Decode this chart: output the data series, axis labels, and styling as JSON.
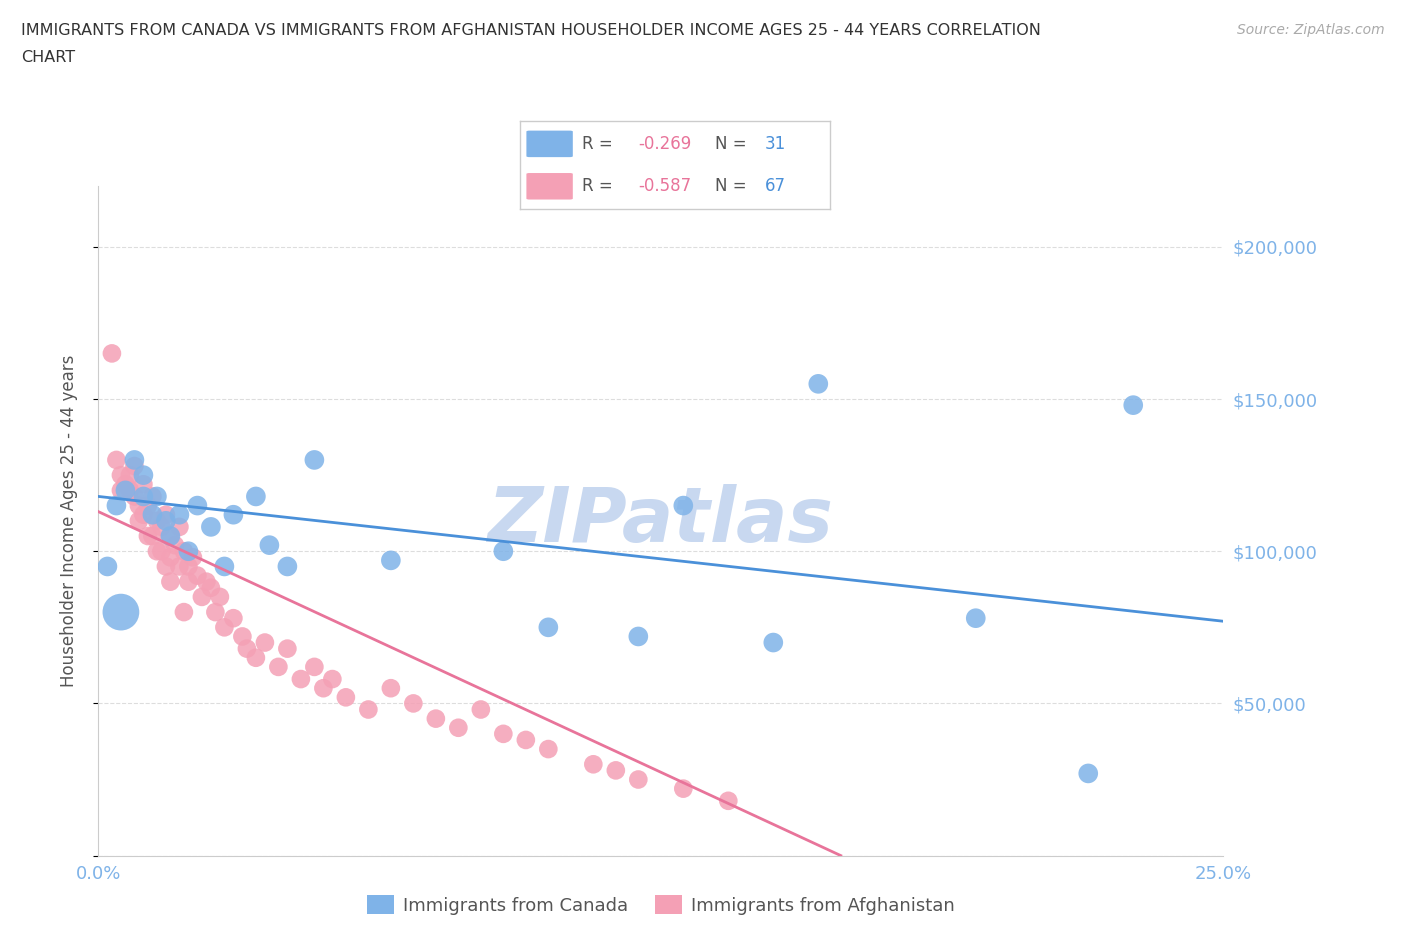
{
  "title_line1": "IMMIGRANTS FROM CANADA VS IMMIGRANTS FROM AFGHANISTAN HOUSEHOLDER INCOME AGES 25 - 44 YEARS CORRELATION",
  "title_line2": "CHART",
  "source": "Source: ZipAtlas.com",
  "ylabel": "Householder Income Ages 25 - 44 years",
  "xlim": [
    0.0,
    0.25
  ],
  "ylim": [
    0,
    220000
  ],
  "yticks": [
    0,
    50000,
    100000,
    150000,
    200000
  ],
  "ytick_labels": [
    "",
    "$50,000",
    "$100,000",
    "$150,000",
    "$200,000"
  ],
  "xticks": [
    0.0,
    0.05,
    0.1,
    0.15,
    0.2,
    0.25
  ],
  "xtick_labels": [
    "0.0%",
    "",
    "",
    "",
    "",
    "25.0%"
  ],
  "canada_color": "#7fb3e8",
  "canada_color_dark": "#4a90d9",
  "afghanistan_color": "#f4a0b5",
  "afghanistan_color_dark": "#e8749a",
  "canada_R": "-0.269",
  "canada_N": "31",
  "afghanistan_R": "-0.587",
  "afghanistan_N": "67",
  "canada_scatter_x": [
    0.002,
    0.004,
    0.006,
    0.008,
    0.01,
    0.01,
    0.012,
    0.013,
    0.015,
    0.016,
    0.018,
    0.02,
    0.022,
    0.025,
    0.028,
    0.03,
    0.035,
    0.038,
    0.042,
    0.048,
    0.065,
    0.09,
    0.1,
    0.12,
    0.13,
    0.15,
    0.16,
    0.195,
    0.22,
    0.23,
    0.005
  ],
  "canada_scatter_y": [
    95000,
    115000,
    120000,
    130000,
    118000,
    125000,
    112000,
    118000,
    110000,
    105000,
    112000,
    100000,
    115000,
    108000,
    95000,
    112000,
    118000,
    102000,
    95000,
    130000,
    97000,
    100000,
    75000,
    72000,
    115000,
    70000,
    155000,
    78000,
    27000,
    148000,
    80000
  ],
  "canada_scatter_sizes": [
    200,
    200,
    200,
    200,
    200,
    200,
    200,
    200,
    200,
    200,
    200,
    200,
    200,
    200,
    200,
    200,
    200,
    200,
    200,
    200,
    200,
    200,
    200,
    200,
    200,
    200,
    200,
    200,
    200,
    200,
    700
  ],
  "afghanistan_scatter_x": [
    0.004,
    0.005,
    0.006,
    0.007,
    0.008,
    0.008,
    0.009,
    0.01,
    0.01,
    0.011,
    0.012,
    0.012,
    0.013,
    0.014,
    0.014,
    0.015,
    0.016,
    0.016,
    0.017,
    0.018,
    0.018,
    0.019,
    0.02,
    0.02,
    0.021,
    0.022,
    0.023,
    0.024,
    0.025,
    0.026,
    0.027,
    0.028,
    0.03,
    0.032,
    0.033,
    0.035,
    0.037,
    0.04,
    0.042,
    0.045,
    0.048,
    0.05,
    0.052,
    0.055,
    0.06,
    0.065,
    0.07,
    0.075,
    0.08,
    0.085,
    0.09,
    0.095,
    0.1,
    0.11,
    0.115,
    0.12,
    0.13,
    0.14,
    0.003,
    0.005,
    0.007,
    0.009,
    0.011,
    0.013,
    0.015,
    0.016,
    0.019
  ],
  "afghanistan_scatter_y": [
    130000,
    125000,
    122000,
    120000,
    128000,
    118000,
    115000,
    122000,
    112000,
    115000,
    118000,
    105000,
    110000,
    108000,
    100000,
    112000,
    105000,
    98000,
    102000,
    95000,
    108000,
    100000,
    95000,
    90000,
    98000,
    92000,
    85000,
    90000,
    88000,
    80000,
    85000,
    75000,
    78000,
    72000,
    68000,
    65000,
    70000,
    62000,
    68000,
    58000,
    62000,
    55000,
    58000,
    52000,
    48000,
    55000,
    50000,
    45000,
    42000,
    48000,
    40000,
    38000,
    35000,
    30000,
    28000,
    25000,
    22000,
    18000,
    165000,
    120000,
    125000,
    110000,
    105000,
    100000,
    95000,
    90000,
    80000
  ],
  "watermark_text": "ZIPatlas",
  "watermark_color": "#c8d8f0",
  "grid_color": "#dddddd",
  "axis_color": "#cccccc",
  "tick_color": "#7fb3e8",
  "label_color": "#555555",
  "canada_line_x": [
    0.0,
    0.25
  ],
  "canada_line_y": [
    118000,
    77000
  ],
  "afghanistan_line_x": [
    0.0,
    0.165
  ],
  "afghanistan_line_y": [
    113000,
    0
  ],
  "legend_R_color": "#e8749a",
  "legend_N_color": "#4a90d9"
}
